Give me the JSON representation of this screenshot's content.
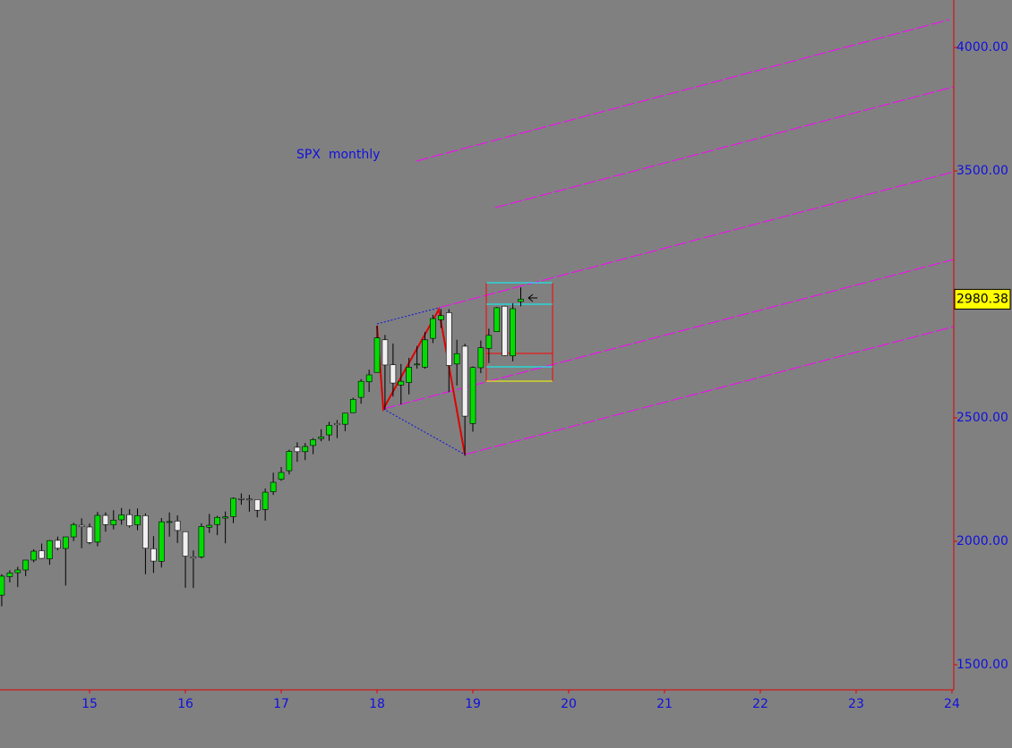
{
  "chart_data": {
    "type": "candlestick",
    "title": "SPX  monthly",
    "x": [
      14.083,
      14.167,
      14.25,
      14.333,
      14.417,
      14.5,
      14.583,
      14.667,
      14.75,
      14.833,
      14.917,
      15,
      15.083,
      15.167,
      15.25,
      15.333,
      15.417,
      15.5,
      15.583,
      15.667,
      15.75,
      15.833,
      15.917,
      16,
      16.083,
      16.167,
      16.25,
      16.333,
      16.417,
      16.5,
      16.583,
      16.667,
      16.75,
      16.833,
      16.917,
      17,
      17.083,
      17.167,
      17.25,
      17.333,
      17.417,
      17.5,
      17.583,
      17.667,
      17.75,
      17.833,
      17.917,
      18,
      18.083,
      18.167,
      18.25,
      18.333,
      18.417,
      18.5,
      18.583,
      18.667,
      18.75,
      18.833,
      18.917,
      19,
      19.083,
      19.167,
      19.25,
      19.333,
      19.417,
      19.5
    ],
    "open": [
      1782,
      1857,
      1873,
      1884,
      1924,
      1962,
      1929,
      2004,
      1971,
      2018,
      2065,
      2058,
      1997,
      2105,
      2067,
      2087,
      2108,
      2067,
      2104,
      1970,
      1919,
      2080,
      2082,
      2039,
      1937,
      1937,
      2057,
      2068,
      2094,
      2100,
      2173,
      2171,
      2169,
      2129,
      2201,
      2251,
      2286,
      2381,
      2363,
      2388,
      2416,
      2431,
      2477,
      2474,
      2521,
      2583,
      2646,
      2684,
      2816,
      2715,
      2633,
      2643,
      2718,
      2705,
      2822,
      2897,
      2926,
      2718,
      2790,
      2477,
      2703,
      2781,
      2849,
      2952,
      2751,
      2971
    ],
    "high": [
      1867,
      1883,
      1897,
      1924,
      1968,
      1991,
      2005,
      2019,
      2018,
      2075,
      2093,
      2072,
      2119,
      2117,
      2126,
      2135,
      2130,
      2133,
      2113,
      2021,
      2094,
      2117,
      2105,
      2039,
      1963,
      2073,
      2111,
      2103,
      2121,
      2178,
      2194,
      2188,
      2170,
      2214,
      2278,
      2301,
      2371,
      2401,
      2398,
      2418,
      2454,
      2484,
      2491,
      2519,
      2582,
      2657,
      2695,
      2873,
      2836,
      2801,
      2718,
      2743,
      2791,
      2848,
      2917,
      2941,
      2940,
      2816,
      2800,
      2708,
      2813,
      2861,
      2949,
      2954,
      2964,
      3028
    ],
    "low": [
      1737,
      1834,
      1815,
      1859,
      1915,
      1930,
      1905,
      1964,
      1821,
      2001,
      1972,
      1988,
      1980,
      2039,
      2048,
      2067,
      2056,
      2045,
      1867,
      1872,
      1894,
      2019,
      1993,
      1812,
      1811,
      1931,
      2034,
      2025,
      1992,
      2074,
      2148,
      2120,
      2097,
      2084,
      2188,
      2245,
      2271,
      2322,
      2329,
      2353,
      2405,
      2407,
      2418,
      2446,
      2520,
      2557,
      2605,
      2683,
      2533,
      2586,
      2554,
      2595,
      2699,
      2699,
      2803,
      2864,
      2604,
      2631,
      2346,
      2444,
      2681,
      2722,
      2848,
      2750,
      2729,
      2952
    ],
    "close": [
      1859,
      1872,
      1884,
      1924,
      1960,
      1931,
      2003,
      1972,
      2018,
      2068,
      2059,
      1995,
      2105,
      2068,
      2086,
      2107,
      2063,
      2104,
      1972,
      1920,
      2079,
      2080,
      2044,
      1940,
      1932,
      2060,
      2065,
      2097,
      2099,
      2174,
      2171,
      2168,
      2126,
      2199,
      2239,
      2279,
      2364,
      2363,
      2384,
      2412,
      2423,
      2470,
      2472,
      2519,
      2575,
      2648,
      2674,
      2824,
      2714,
      2641,
      2648,
      2705,
      2718,
      2816,
      2902,
      2914,
      2712,
      2760,
      2507,
      2704,
      2784,
      2834,
      2946,
      2752,
      2942,
      2980.38
    ],
    "up_color": "#00dd00",
    "down_color": "#f0f0f0",
    "xlim": [
      14.065,
      24.019
    ],
    "xticks": [
      15,
      16,
      17,
      18,
      19,
      20,
      21,
      22,
      23,
      24
    ],
    "ylim": [
      1398.6,
      4192
    ],
    "yticks": [
      {
        "value": 1500,
        "label": "1500.00"
      },
      {
        "value": 2000,
        "label": "2000.00"
      },
      {
        "value": 2500,
        "label": "2500.00"
      },
      {
        "value": 3500,
        "label": "3500.00"
      },
      {
        "value": 4000,
        "label": "4000.00"
      }
    ]
  }
}
